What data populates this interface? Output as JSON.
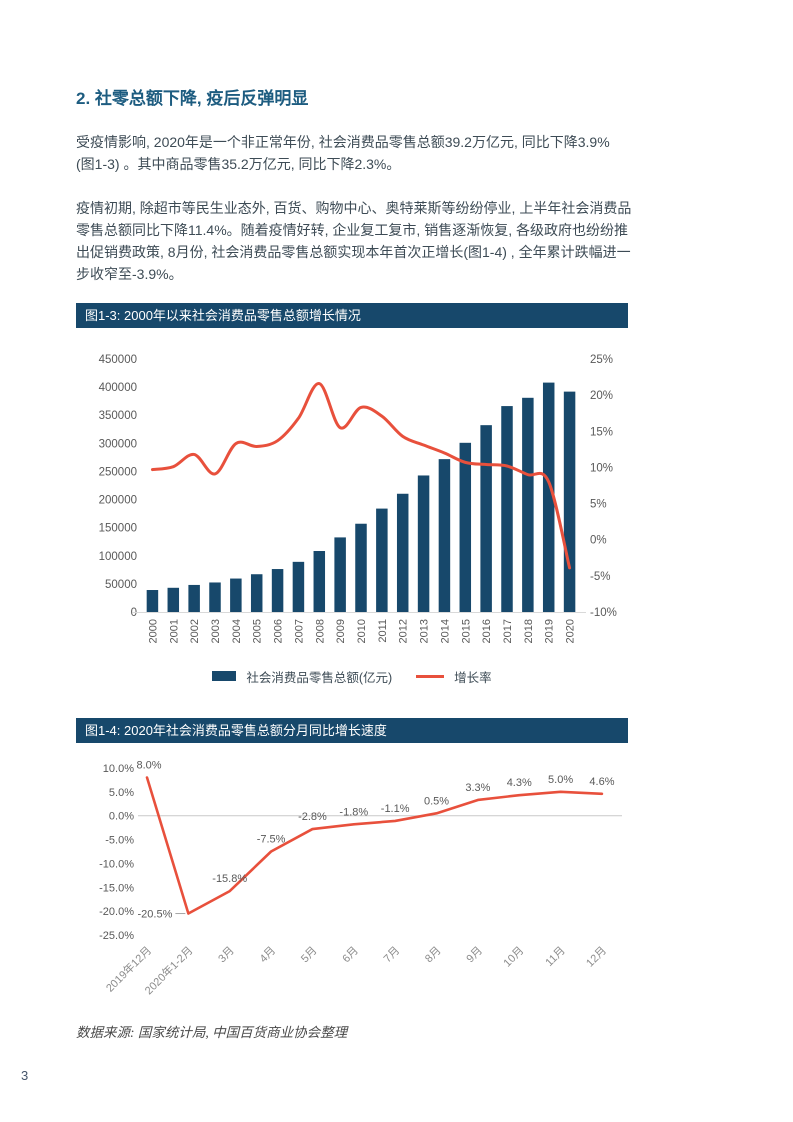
{
  "page": {
    "number": "3",
    "heading": "2. 社零总额下降, 疫后反弹明显",
    "paragraphs": [
      "受疫情影响, 2020年是一个非正常年份, 社会消费品零售总额39.2万亿元, 同比下降3.9% (图1-3) 。其中商品零售35.2万亿元, 同比下降2.3%。",
      "疫情初期, 除超市等民生业态外, 百货、购物中心、奥特莱斯等纷纷停业, 上半年社会消费品零售总额同比下降11.4%。随着疫情好转, 企业复工复市, 销售逐渐恢复, 各级政府也纷纷推出促销费政策, 8月份, 社会消费品零售总额实现本年首次正增长(图1-4) , 全年累计跌幅进一步收窄至-3.9%。"
    ],
    "source_note": "数据来源: 国家统计局, 中国百货商业协会整理"
  },
  "colors": {
    "navy": "#17486B",
    "red": "#E8503C",
    "axis_line": "#D9D9D9",
    "tick_label": "#595959",
    "rotated_label": "#8C8C8C"
  },
  "chart_data": [
    {
      "type": "bar",
      "subtype": "bar-line-combo",
      "title": "图1-3: 2000年以来社会消费品零售总额增长情况",
      "categories": [
        "2000",
        "2001",
        "2002",
        "2003",
        "2004",
        "2005",
        "2006",
        "2007",
        "2008",
        "2009",
        "2010",
        "2011",
        "2012",
        "2013",
        "2014",
        "2015",
        "2016",
        "2017",
        "2018",
        "2019",
        "2020"
      ],
      "series": [
        {
          "name": "社会消费品零售总额(亿元)",
          "type": "bar",
          "axis": "left",
          "values": [
            39106,
            43055,
            48136,
            52516,
            59501,
            67177,
            76410,
            89210,
            108488,
            132678,
            156998,
            183919,
            210307,
            242843,
            271896,
            300931,
            332316,
            366262,
            380987,
            408017,
            391981
          ]
        },
        {
          "name": "增长率",
          "type": "line",
          "axis": "right",
          "values": [
            9.7,
            10.1,
            11.8,
            9.1,
            13.3,
            12.9,
            13.7,
            16.8,
            21.6,
            15.5,
            18.3,
            17.1,
            14.3,
            13.1,
            12.0,
            10.7,
            10.4,
            10.2,
            9.0,
            8.0,
            -3.9
          ]
        }
      ],
      "left_axis": {
        "min": 0,
        "max": 450000,
        "step": 50000
      },
      "right_axis": {
        "min": -10,
        "max": 25,
        "step": 5,
        "suffix": "%"
      },
      "gridlines": false,
      "legend_position": "bottom"
    },
    {
      "type": "line",
      "title": "图1-4: 2020年社会消费品零售总额分月同比增长速度",
      "categories": [
        "2019年12月",
        "2020年1-2月",
        "3月",
        "4月",
        "5月",
        "6月",
        "7月",
        "8月",
        "9月",
        "10月",
        "11月",
        "12月"
      ],
      "values": [
        8.0,
        -20.5,
        -15.8,
        -7.5,
        -2.8,
        -1.8,
        -1.1,
        0.5,
        3.3,
        4.3,
        5.0,
        4.6
      ],
      "data_labels": [
        "8.0%",
        "-20.5%",
        "-15.8%",
        "-7.5%",
        "-2.8%",
        "-1.8%",
        "-1.1%",
        "0.5%",
        "3.3%",
        "4.3%",
        "5.0%",
        "4.6%"
      ],
      "ylabel": "",
      "y_axis": {
        "min": -25,
        "max": 10,
        "step": 5,
        "decimals": 1,
        "suffix": "%"
      },
      "gridlines": "zero-line-only",
      "legend_position": "none"
    }
  ]
}
